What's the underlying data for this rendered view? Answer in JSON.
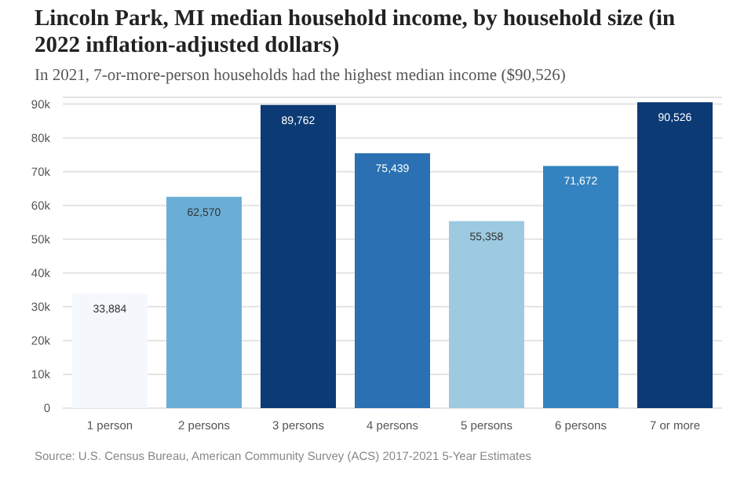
{
  "chart_data": {
    "type": "bar",
    "title": "Lincoln Park, MI median household income, by household size (in 2022 inflation-adjusted dollars)",
    "subtitle": "In 2021, 7-or-more-person households had the highest median income ($90,526)",
    "categories": [
      "1 person",
      "2 persons",
      "3 persons",
      "4 persons",
      "5 persons",
      "6 persons",
      "7 or more"
    ],
    "values": [
      33884,
      62570,
      89762,
      75439,
      55358,
      71672,
      90526
    ],
    "value_labels": [
      "33,884",
      "62,570",
      "89,762",
      "75,439",
      "55,358",
      "71,672",
      "90,526"
    ],
    "colors": [
      "#f4f8fd",
      "#6aaed6",
      "#0b3a75",
      "#2a70b2",
      "#9dcae1",
      "#3383c0",
      "#0b3a75"
    ],
    "ylim": [
      0,
      92000
    ],
    "yticks": [
      {
        "value": 0,
        "label": "0"
      },
      {
        "value": 10000,
        "label": "10k"
      },
      {
        "value": 20000,
        "label": "20k"
      },
      {
        "value": 30000,
        "label": "30k"
      },
      {
        "value": 40000,
        "label": "40k"
      },
      {
        "value": 50000,
        "label": "50k"
      },
      {
        "value": 60000,
        "label": "60k"
      },
      {
        "value": 70000,
        "label": "70k"
      },
      {
        "value": 80000,
        "label": "80k"
      },
      {
        "value": 90000,
        "label": "90k"
      }
    ],
    "grid": "y",
    "annotations": [
      "Source: U.S. Census Bureau, American Community Survey (ACS) 2017-2021 5-Year Estimates"
    ]
  }
}
